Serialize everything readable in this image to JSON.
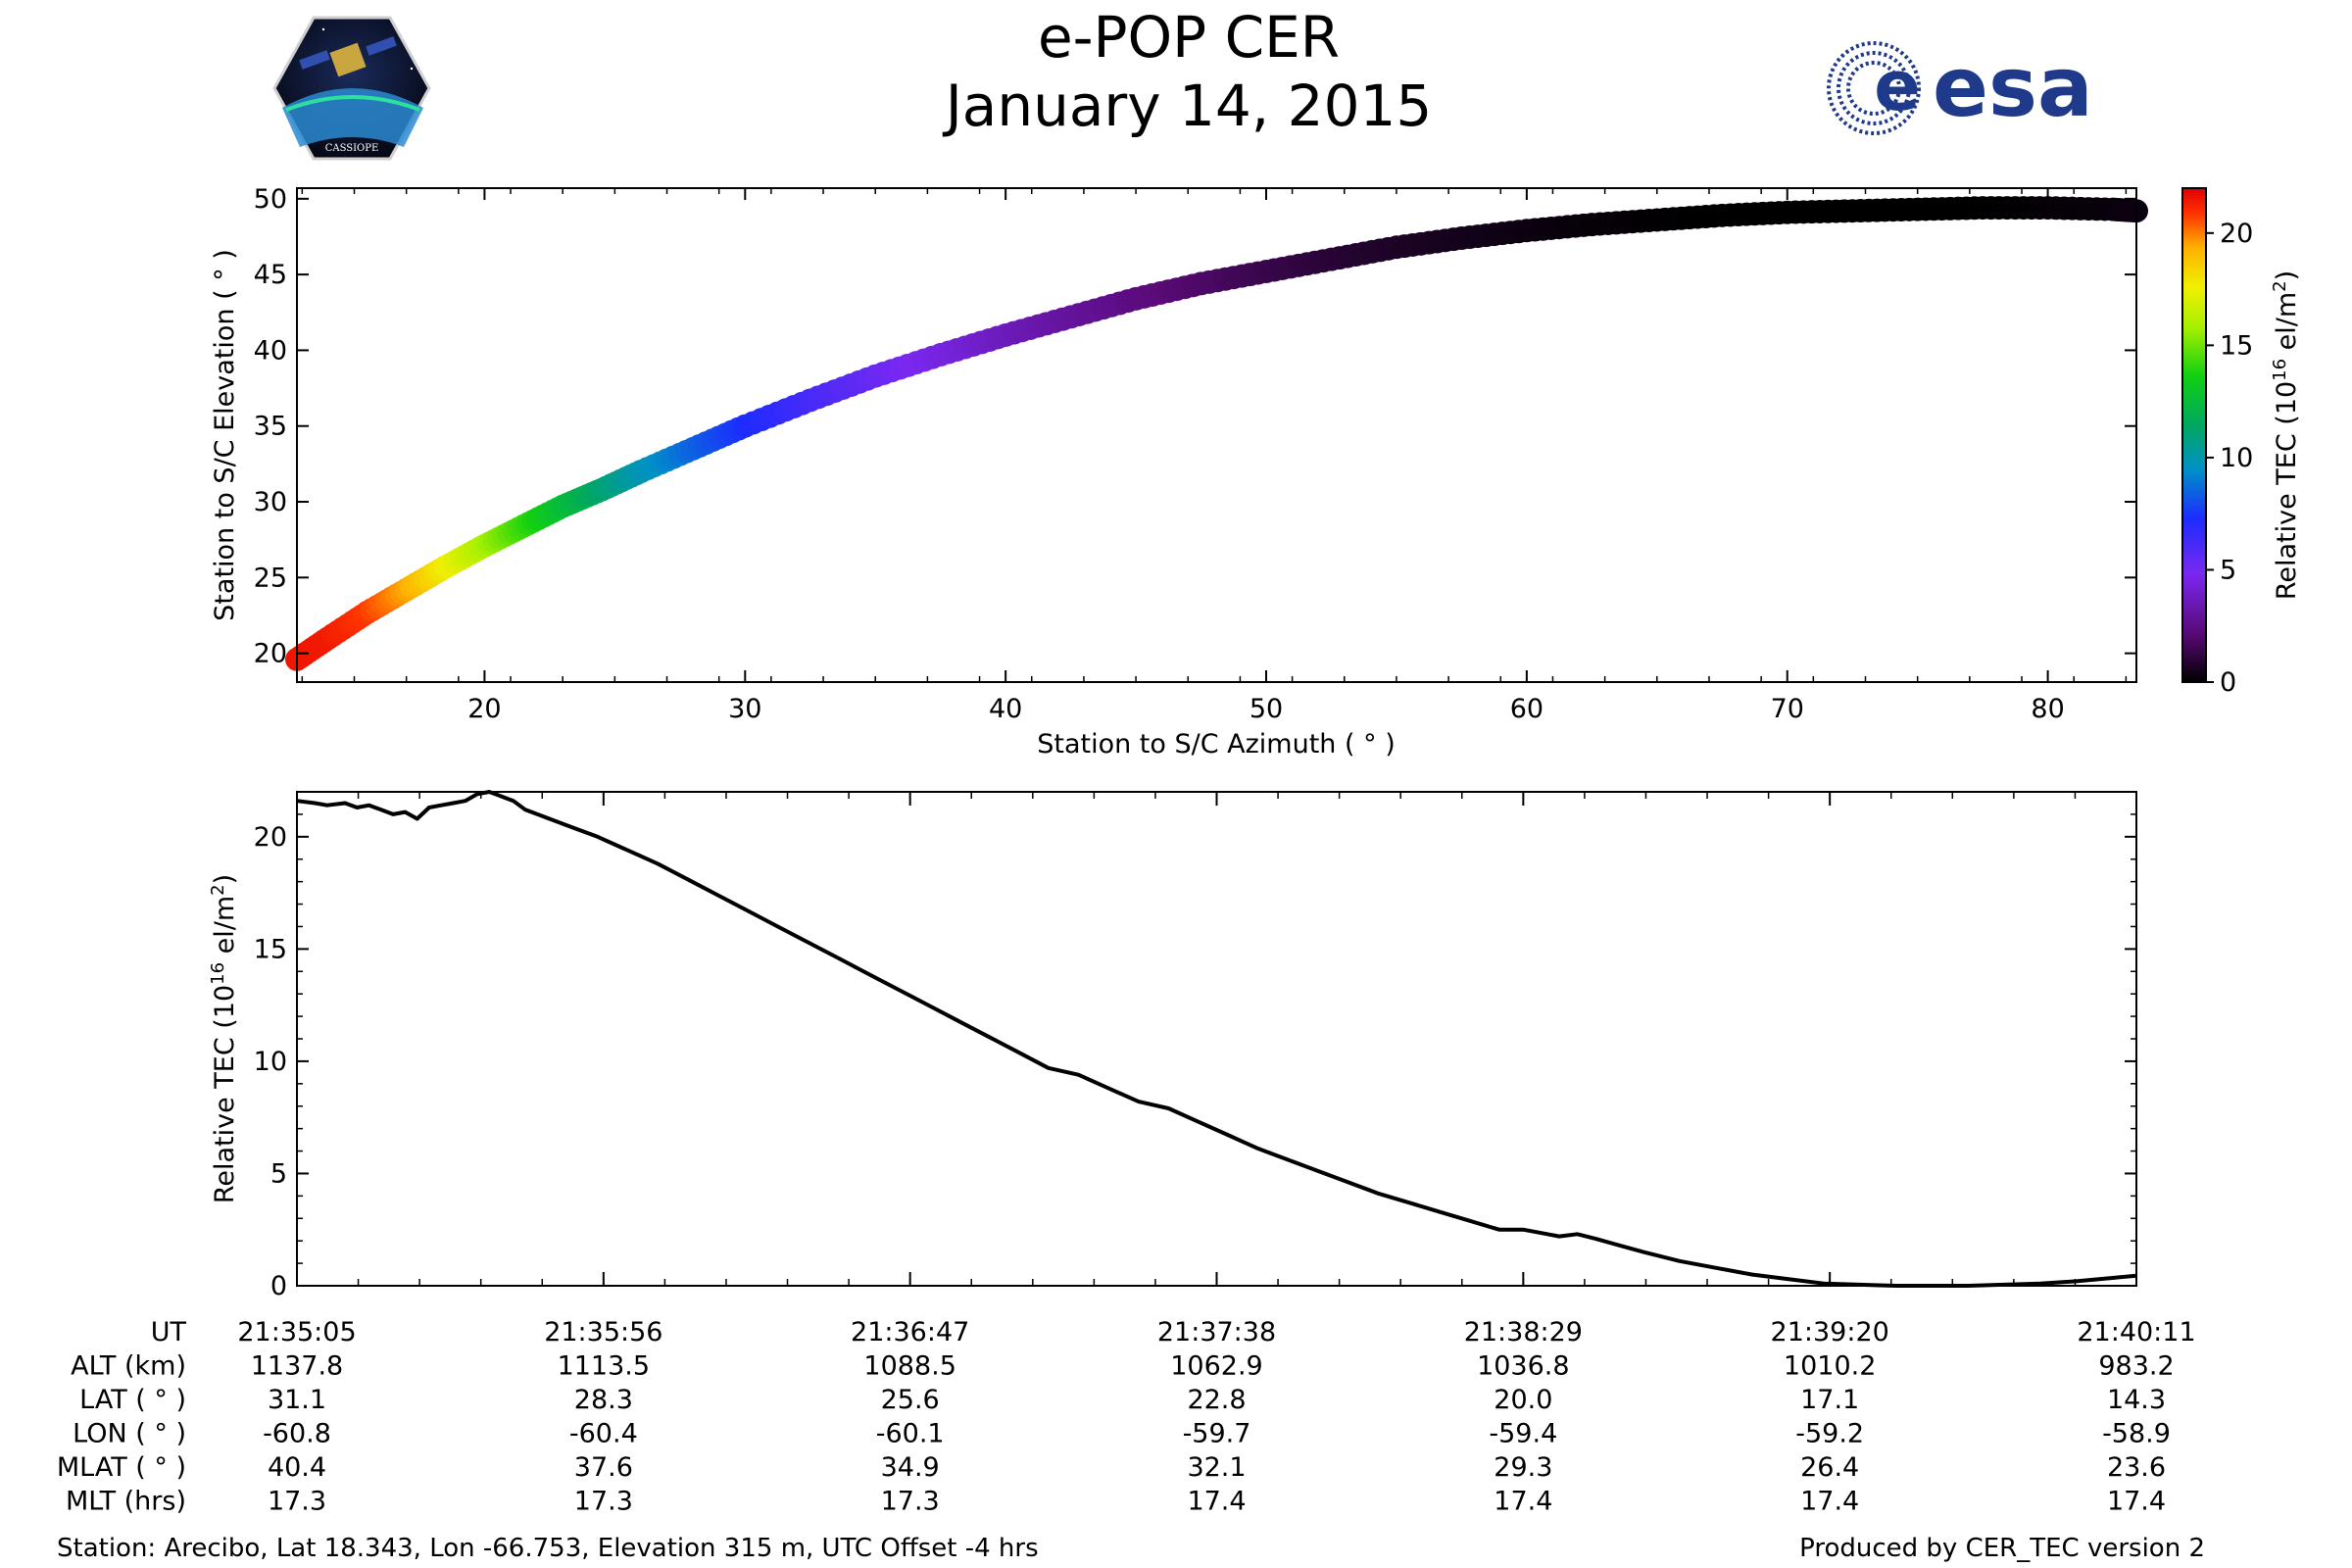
{
  "header": {
    "title": "e-POP CER",
    "date": "January 14, 2015",
    "logo_left_text": "CASSIOPE",
    "logo_right_text": "esa"
  },
  "colors": {
    "esa_blue": "#1f3a8a",
    "line": "#000000"
  },
  "chart_data": [
    {
      "type": "scatter",
      "xlabel": "Station to S/C Azimuth ( ° )",
      "ylabel": "Station to S/C Elevation ( ° )",
      "xlim": [
        12.8,
        83.4
      ],
      "ylim": [
        18.1,
        50.7
      ],
      "xticks": [
        20,
        30,
        40,
        50,
        60,
        70,
        80
      ],
      "yticks": [
        20,
        25,
        30,
        35,
        40,
        45,
        50
      ],
      "colormap": "nipy_spectral",
      "points": [
        {
          "az": 12.8,
          "el": 19.6,
          "tec": 21.5
        },
        {
          "az": 14.0,
          "el": 21.0,
          "tec": 21.4
        },
        {
          "az": 15.5,
          "el": 22.7,
          "tec": 20.8
        },
        {
          "az": 17.0,
          "el": 24.2,
          "tec": 19.5
        },
        {
          "az": 18.5,
          "el": 25.7,
          "tec": 17.7
        },
        {
          "az": 20.0,
          "el": 27.1,
          "tec": 15.9
        },
        {
          "az": 21.5,
          "el": 28.4,
          "tec": 14.2
        },
        {
          "az": 23.0,
          "el": 29.7,
          "tec": 12.6
        },
        {
          "az": 24.5,
          "el": 30.8,
          "tec": 11.2
        },
        {
          "az": 26.0,
          "el": 32.0,
          "tec": 9.9
        },
        {
          "az": 28.0,
          "el": 33.5,
          "tec": 8.5
        },
        {
          "az": 30.0,
          "el": 35.0,
          "tec": 7.3
        },
        {
          "az": 32.5,
          "el": 36.7,
          "tec": 6.2
        },
        {
          "az": 35.0,
          "el": 38.3,
          "tec": 5.3
        },
        {
          "az": 37.5,
          "el": 39.7,
          "tec": 4.5
        },
        {
          "az": 40.0,
          "el": 41.0,
          "tec": 3.7
        },
        {
          "az": 42.5,
          "el": 42.2,
          "tec": 3.0
        },
        {
          "az": 45.0,
          "el": 43.4,
          "tec": 2.4
        },
        {
          "az": 47.5,
          "el": 44.4,
          "tec": 1.9
        },
        {
          "az": 50.0,
          "el": 45.2,
          "tec": 1.4
        },
        {
          "az": 52.5,
          "el": 46.0,
          "tec": 1.0
        },
        {
          "az": 55.0,
          "el": 46.8,
          "tec": 0.7
        },
        {
          "az": 57.5,
          "el": 47.4,
          "tec": 0.5
        },
        {
          "az": 60.0,
          "el": 47.9,
          "tec": 0.3
        },
        {
          "az": 62.5,
          "el": 48.3,
          "tec": 0.15
        },
        {
          "az": 65.0,
          "el": 48.6,
          "tec": 0.05
        },
        {
          "az": 67.5,
          "el": 48.9,
          "tec": 0.0
        },
        {
          "az": 70.0,
          "el": 49.1,
          "tec": 0.0
        },
        {
          "az": 72.5,
          "el": 49.2,
          "tec": 0.0
        },
        {
          "az": 75.0,
          "el": 49.3,
          "tec": 0.0
        },
        {
          "az": 77.5,
          "el": 49.4,
          "tec": 0.0
        },
        {
          "az": 80.0,
          "el": 49.4,
          "tec": 0.1
        },
        {
          "az": 82.5,
          "el": 49.3,
          "tec": 0.2
        },
        {
          "az": 83.4,
          "el": 49.2,
          "tec": 0.3
        }
      ],
      "colorbar": {
        "label_pre": "Relative TEC (10",
        "label_sup": "16",
        "label_mid": " el/m",
        "label_sup2": "2",
        "label_post": ")",
        "range": [
          0,
          22
        ],
        "ticks": [
          0,
          5,
          10,
          15,
          20
        ]
      }
    },
    {
      "type": "line",
      "ylabel_pre": "Relative TEC (10",
      "ylabel_sup": "16",
      "ylabel_mid": " el/m",
      "ylabel_sup2": "2",
      "ylabel_post": ")",
      "xlim": [
        0,
        306
      ],
      "ylim": [
        0,
        22
      ],
      "yticks": [
        0,
        5,
        10,
        15,
        20
      ],
      "x_major_ticks": [
        0,
        51,
        102,
        153,
        204,
        255,
        306
      ],
      "x_minor_step": 10.2,
      "series": [
        {
          "x": [
            0,
            3,
            5,
            8,
            10,
            12,
            14,
            16,
            18,
            20,
            22,
            24,
            26,
            28,
            30,
            32,
            34,
            36,
            38,
            40,
            42,
            44,
            46,
            48,
            50,
            55,
            60,
            65,
            70,
            75,
            80,
            85,
            90,
            95,
            100,
            105,
            110,
            115,
            120,
            125,
            130,
            135,
            140,
            145,
            150,
            155,
            160,
            165,
            170,
            175,
            180,
            185,
            190,
            195,
            200,
            204,
            208,
            210,
            213,
            216,
            220,
            224,
            230,
            236,
            242,
            248,
            254,
            260,
            266,
            272,
            278,
            284,
            290,
            296,
            302,
            306
          ],
          "y": [
            21.6,
            21.5,
            21.4,
            21.5,
            21.3,
            21.4,
            21.2,
            21.0,
            21.1,
            20.8,
            21.3,
            21.4,
            21.5,
            21.6,
            21.9,
            22.0,
            21.8,
            21.6,
            21.2,
            21.0,
            20.8,
            20.6,
            20.4,
            20.2,
            20.0,
            19.4,
            18.8,
            18.1,
            17.4,
            16.7,
            16.0,
            15.3,
            14.6,
            13.9,
            13.2,
            12.5,
            11.8,
            11.1,
            10.4,
            9.7,
            9.4,
            8.8,
            8.2,
            7.9,
            7.3,
            6.7,
            6.1,
            5.6,
            5.1,
            4.6,
            4.1,
            3.7,
            3.3,
            2.9,
            2.5,
            2.5,
            2.3,
            2.2,
            2.3,
            2.1,
            1.8,
            1.5,
            1.1,
            0.8,
            0.5,
            0.3,
            0.1,
            0.05,
            0.0,
            0.0,
            0.0,
            0.05,
            0.1,
            0.2,
            0.35,
            0.45
          ]
        }
      ]
    }
  ],
  "table": {
    "row_labels": [
      "UT",
      "ALT (km)",
      "LAT ( ° )",
      "LON ( ° )",
      "MLAT ( ° )",
      "MLT (hrs)"
    ],
    "columns": [
      [
        "21:35:05",
        "1137.8",
        "31.1",
        "-60.8",
        "40.4",
        "17.3"
      ],
      [
        "21:35:56",
        "1113.5",
        "28.3",
        "-60.4",
        "37.6",
        "17.3"
      ],
      [
        "21:36:47",
        "1088.5",
        "25.6",
        "-60.1",
        "34.9",
        "17.3"
      ],
      [
        "21:37:38",
        "1062.9",
        "22.8",
        "-59.7",
        "32.1",
        "17.4"
      ],
      [
        "21:38:29",
        "1036.8",
        "20.0",
        "-59.4",
        "29.3",
        "17.4"
      ],
      [
        "21:39:20",
        "1010.2",
        "17.1",
        "-59.2",
        "26.4",
        "17.4"
      ],
      [
        "21:40:11",
        "983.2",
        "14.3",
        "-58.9",
        "23.6",
        "17.4"
      ]
    ]
  },
  "footer": {
    "station": "Station: Arecibo, Lat 18.343, Lon -66.753, Elevation 315 m, UTC Offset -4 hrs",
    "produced": "Produced by CER_TEC version 2"
  }
}
